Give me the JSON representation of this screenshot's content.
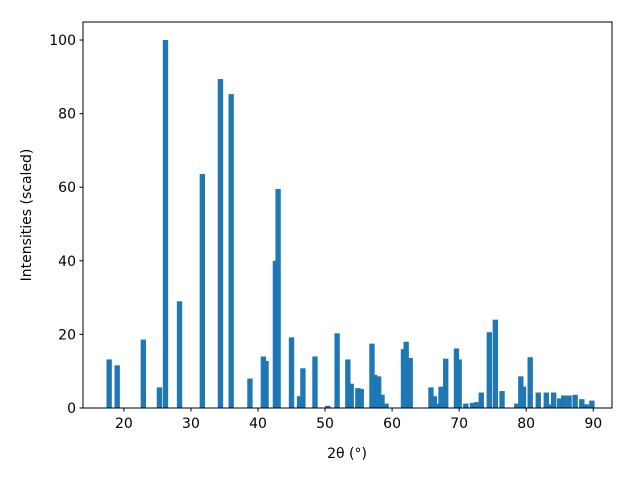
{
  "chart_data": {
    "type": "bar",
    "x": [
      17.8,
      19.0,
      22.9,
      25.3,
      26.2,
      28.3,
      31.7,
      34.4,
      36.0,
      38.8,
      40.8,
      41.2,
      42.6,
      43.0,
      45.0,
      46.2,
      46.7,
      48.5,
      50.4,
      51.8,
      53.4,
      53.9,
      54.9,
      55.4,
      57.0,
      57.4,
      58.0,
      58.5,
      59.1,
      61.7,
      62.1,
      62.7,
      65.8,
      66.3,
      66.8,
      67.3,
      68.0,
      69.6,
      70.0,
      71.0,
      72.0,
      72.6,
      73.3,
      74.5,
      75.4,
      76.4,
      78.6,
      79.2,
      79.6,
      80.6,
      81.8,
      83.0,
      83.6,
      84.1,
      85.0,
      85.6,
      86.4,
      87.3,
      88.3,
      89.0,
      89.8
    ],
    "values": [
      13.2,
      11.6,
      18.6,
      5.6,
      100,
      29,
      63.6,
      89.4,
      85.3,
      8.0,
      14,
      12.8,
      40,
      59.5,
      19.2,
      3.2,
      10.8,
      14,
      0.6,
      20.3,
      13.2,
      6.6,
      5.4,
      5.2,
      17.5,
      9,
      8.6,
      3.6,
      1.2,
      16,
      18,
      13.6,
      5.6,
      3.2,
      1.2,
      5.8,
      13.4,
      16.2,
      13.2,
      1.2,
      1.4,
      1.6,
      4.2,
      20.6,
      24,
      4.6,
      1.2,
      8.6,
      5.8,
      13.8,
      4.2,
      4.2,
      1.0,
      4.2,
      2.6,
      3.4,
      3.4,
      3.6,
      2.4,
      1.0,
      2.0
    ],
    "color": "#1f77b4",
    "xlabel": "2θ (°)",
    "ylabel": "Intensities (scaled)",
    "xlim": [
      13.9,
      92.8
    ],
    "ylim": [
      0,
      104.9
    ],
    "xticks": [
      20,
      30,
      40,
      50,
      60,
      70,
      80,
      90
    ],
    "yticks": [
      0,
      20,
      40,
      60,
      80,
      100
    ]
  }
}
